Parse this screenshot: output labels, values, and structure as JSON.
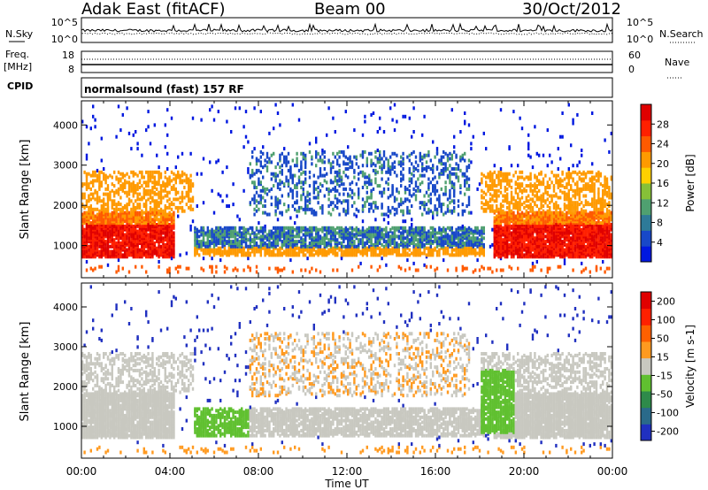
{
  "header": {
    "station": "Adak East (fitACF)",
    "beam": "Beam 00",
    "date": "30/Oct/2012"
  },
  "nsky_panel": {
    "label": "N.Sky",
    "left_ticks": [
      "10^5",
      "10^0"
    ],
    "right_ticks": [
      "10^5",
      "10^0"
    ],
    "right_label": "N.Search"
  },
  "freq_panel": {
    "label_line1": "Freq.",
    "label_line2": "[MHz]",
    "left_ticks": [
      18,
      8
    ],
    "right_ticks": [
      60,
      0
    ],
    "right_label": "Nave"
  },
  "cpid_panel": {
    "label": "CPID",
    "text": "normalsound (fast) 157 RF"
  },
  "x_axis": {
    "title": "Time UT",
    "ticks": [
      "00:00",
      "04:00",
      "08:00",
      "12:00",
      "16:00",
      "20:00",
      "00:00"
    ]
  },
  "chart_data": [
    {
      "type": "heatmap",
      "panel": "power",
      "ylabel": "Slant Range [km]",
      "y_ticks": [
        1000,
        2000,
        3000,
        4000
      ],
      "ylim": [
        200,
        4600
      ],
      "xlim_hours": [
        0,
        24
      ],
      "colorbar_label": "Power [dB]",
      "colorbar_ticks": [
        4,
        8,
        12,
        16,
        20,
        24,
        28
      ],
      "colorbar_colors": [
        "#0018e0",
        "#1848c8",
        "#2e7a98",
        "#4fa070",
        "#86c038",
        "#ffd000",
        "#ff9a00",
        "#ff5a00",
        "#ff2000",
        "#e00000"
      ]
    },
    {
      "type": "heatmap",
      "panel": "velocity",
      "ylabel": "Slant Range [km]",
      "y_ticks": [
        1000,
        2000,
        3000,
        4000
      ],
      "ylim": [
        200,
        4600
      ],
      "xlim_hours": [
        0,
        24
      ],
      "colorbar_label": "Velocity [m s-1]",
      "colorbar_ticks": [
        200,
        100,
        50,
        15,
        -15,
        -50,
        -100,
        -200
      ],
      "colorbar_colors": [
        "#2030c0",
        "#2a6a8a",
        "#2e8a4a",
        "#60c030",
        "#c8c8c0",
        "#ff9a20",
        "#ff6000",
        "#ff2000",
        "#e00000"
      ]
    }
  ]
}
